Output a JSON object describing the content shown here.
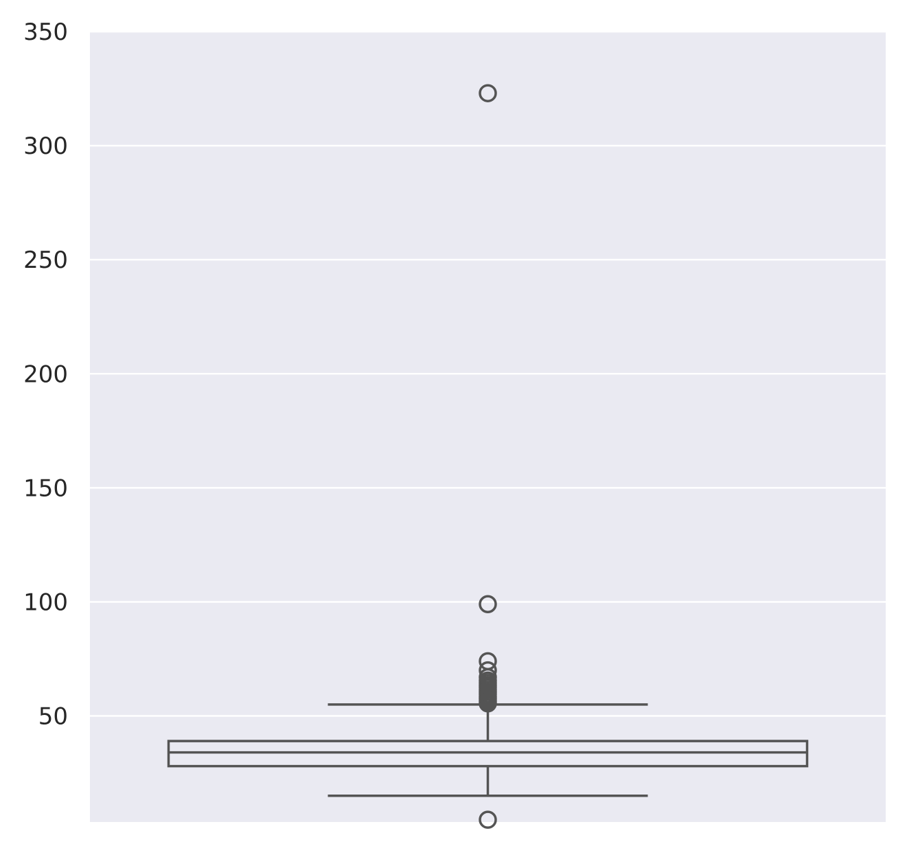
{
  "chart_data": {
    "type": "box",
    "title": "",
    "xlabel": "",
    "ylabel": "",
    "ylim": [
      3.5,
      350
    ],
    "yticks": [
      50,
      100,
      150,
      200,
      250,
      300,
      350
    ],
    "grid": true,
    "legend": "none",
    "colors": {
      "background": "#eaeaf2",
      "box_fill": "#86b56e",
      "lines": "#545454",
      "grid": "#ffffff"
    },
    "box": {
      "whisker_low": 15,
      "q1": 28,
      "median": 34,
      "q3": 39,
      "whisker_high": 55,
      "outliers": [
        4.5,
        55.5,
        56.5,
        57.5,
        58.5,
        59.5,
        60.5,
        61.5,
        62.5,
        63.5,
        64.5,
        65.5,
        67,
        70,
        74,
        99,
        323
      ]
    }
  }
}
